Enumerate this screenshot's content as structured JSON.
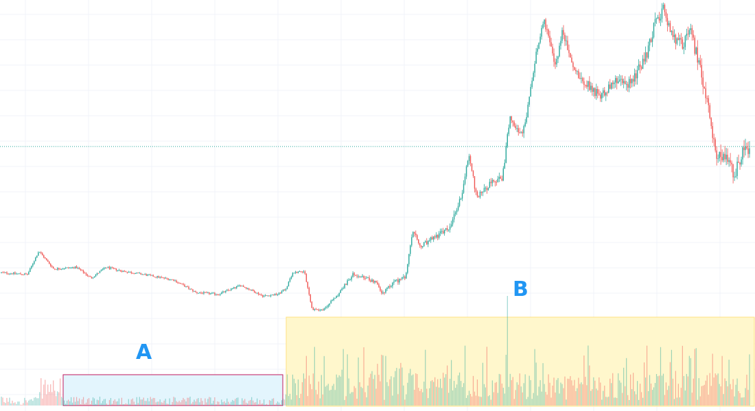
{
  "chart_data": {
    "type": "candlestick",
    "grid": true,
    "colors": {
      "up": "#26a69a",
      "down": "#ef5350",
      "grid": "#f0f3fa",
      "price_line": "#26a69a",
      "label": "#2196f3",
      "zone_a_fill": "#e3f5fd",
      "zone_a_border": "#c2185b",
      "zone_b_fill": "#fff7cc",
      "zone_b_border": "#ffe082"
    },
    "price_anchors": [
      [
        0,
        0.27
      ],
      [
        0.035,
        0.265
      ],
      [
        0.05,
        0.33
      ],
      [
        0.07,
        0.28
      ],
      [
        0.1,
        0.285
      ],
      [
        0.12,
        0.255
      ],
      [
        0.14,
        0.285
      ],
      [
        0.16,
        0.275
      ],
      [
        0.19,
        0.265
      ],
      [
        0.23,
        0.25
      ],
      [
        0.26,
        0.215
      ],
      [
        0.29,
        0.21
      ],
      [
        0.32,
        0.235
      ],
      [
        0.35,
        0.205
      ],
      [
        0.37,
        0.21
      ],
      [
        0.38,
        0.225
      ],
      [
        0.39,
        0.27
      ],
      [
        0.405,
        0.275
      ],
      [
        0.415,
        0.17
      ],
      [
        0.43,
        0.165
      ],
      [
        0.45,
        0.21
      ],
      [
        0.47,
        0.265
      ],
      [
        0.485,
        0.255
      ],
      [
        0.5,
        0.245
      ],
      [
        0.51,
        0.21
      ],
      [
        0.525,
        0.245
      ],
      [
        0.54,
        0.255
      ],
      [
        0.55,
        0.385
      ],
      [
        0.56,
        0.34
      ],
      [
        0.58,
        0.37
      ],
      [
        0.6,
        0.395
      ],
      [
        0.615,
        0.485
      ],
      [
        0.625,
        0.6
      ],
      [
        0.635,
        0.48
      ],
      [
        0.65,
        0.51
      ],
      [
        0.67,
        0.535
      ],
      [
        0.68,
        0.71
      ],
      [
        0.695,
        0.65
      ],
      [
        0.7,
        0.68
      ],
      [
        0.715,
        0.875
      ],
      [
        0.725,
        0.98
      ],
      [
        0.74,
        0.84
      ],
      [
        0.75,
        0.94
      ],
      [
        0.765,
        0.835
      ],
      [
        0.78,
        0.8
      ],
      [
        0.8,
        0.76
      ],
      [
        0.82,
        0.8
      ],
      [
        0.84,
        0.795
      ],
      [
        0.86,
        0.86
      ],
      [
        0.875,
        0.97
      ],
      [
        0.885,
        1.0
      ],
      [
        0.895,
        0.93
      ],
      [
        0.91,
        0.9
      ],
      [
        0.92,
        0.945
      ],
      [
        0.93,
        0.87
      ],
      [
        0.945,
        0.73
      ],
      [
        0.955,
        0.6
      ],
      [
        0.97,
        0.58
      ],
      [
        0.98,
        0.54
      ],
      [
        0.99,
        0.6
      ],
      [
        1.0,
        0.62
      ]
    ],
    "last_price_level": 0.62
  },
  "annotations": {
    "zone_a_label": "A",
    "zone_b_label": "B"
  }
}
